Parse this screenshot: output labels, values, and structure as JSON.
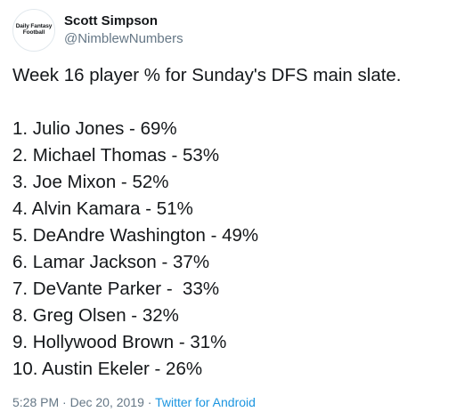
{
  "author": {
    "display_name": "Scott Simpson",
    "handle": "@NimblewNumbers",
    "avatar_text": [
      "Daily Fantasy",
      "Football"
    ]
  },
  "tweet": {
    "intro": "Week 16 player % for Sunday's DFS main slate.",
    "list": [
      "1. Julio Jones - 69%",
      "2. Michael Thomas - 53%",
      "3. Joe Mixon - 52%",
      "4. Alvin Kamara - 51%",
      "5. DeAndre Washington - 49%",
      "6. Lamar Jackson - 37%",
      "7. DeVante Parker -  33%",
      "8. Greg Olsen - 32%",
      "9. Hollywood Brown - 31%",
      "10. Austin Ekeler - 26%"
    ]
  },
  "meta": {
    "time": "5:28 PM",
    "separator1": "·",
    "date": "Dec 20, 2019",
    "separator2": "·",
    "source": "Twitter for Android"
  },
  "colors": {
    "text": "#14171a",
    "secondary": "#657786",
    "link": "#1b95e0"
  }
}
